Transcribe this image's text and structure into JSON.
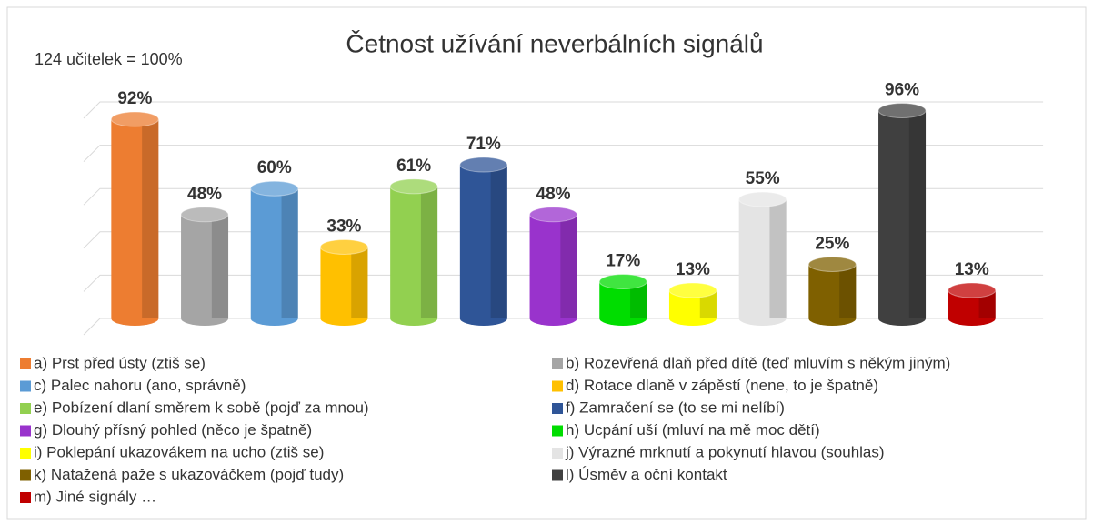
{
  "chart_data": {
    "type": "bar",
    "title": "Četnost užívání neverbálních signálů",
    "subtitle": "124 učitelek = 100%",
    "categories": [
      "a) Prst před ústy (ztiš se)",
      "b) Rozevřená dlaň před dítě (teď mluvím s někým jiným)",
      "c) Palec nahoru (ano, správně)",
      "d) Rotace dlaně v zápěstí (nene, to je špatně)",
      "e) Pobízení dlaní směrem k sobě (pojď za mnou)",
      "f) Zamračení se (to se mi nelíbí)",
      "g) Dlouhý přísný pohled (něco je špatně)",
      "h) Ucpání uší (mluví na mě moc dětí)",
      "i) Poklepání ukazovákem na ucho (ztiš se)",
      "j) Výrazné mrknutí a pokynutí hlavou (souhlas)",
      "k) Natažená paže s ukazováčkem (pojď tudy)",
      "l) Úsměv a oční kontakt",
      "m) Jiné signály …"
    ],
    "values": [
      92,
      48,
      60,
      33,
      61,
      71,
      48,
      17,
      13,
      55,
      25,
      96,
      13
    ],
    "value_labels": [
      "92%",
      "48%",
      "60%",
      "33%",
      "61%",
      "71%",
      "48%",
      "17%",
      "13%",
      "55%",
      "25%",
      "96%",
      "13%"
    ],
    "colors": [
      "#ed7d31",
      "#a5a5a5",
      "#5b9bd5",
      "#ffc000",
      "#92d050",
      "#2f5597",
      "#9933cc",
      "#00dd00",
      "#ffff00",
      "#e4e4e4",
      "#7f6000",
      "#404040",
      "#c00000"
    ],
    "ylim": [
      0,
      100
    ],
    "yticks": [
      0,
      20,
      40,
      60,
      80,
      100
    ],
    "grid": true
  }
}
